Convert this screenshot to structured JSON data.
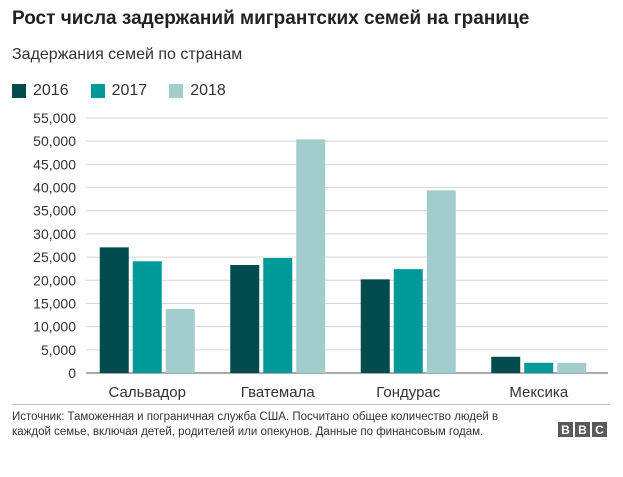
{
  "title": "Рост числа задержаний мигрантских семей на границе",
  "subtitle": "Задержания семей по странам",
  "source": "Источник: Таможенная и пограничная служба США. Посчитано общее количество людей в каждой семье, включая детей, родителей или опекунов. Данные по финансовым годам.",
  "logo": {
    "letters": [
      "B",
      "B",
      "C"
    ]
  },
  "chart_data": {
    "type": "bar",
    "categories": [
      "Сальвадор",
      "Гватемала",
      "Гондурас",
      "Мексика"
    ],
    "series": [
      {
        "name": "2016",
        "color": "#004b4b",
        "values": [
          27100,
          23300,
          20200,
          3500
        ]
      },
      {
        "name": "2017",
        "color": "#00999a",
        "values": [
          24100,
          24800,
          22400,
          2200
        ]
      },
      {
        "name": "2018",
        "color": "#a3cdcd",
        "values": [
          13800,
          50400,
          39400,
          2200
        ]
      }
    ],
    "ylim": [
      0,
      55000
    ],
    "yticks": [
      0,
      5000,
      10000,
      15000,
      20000,
      25000,
      30000,
      35000,
      40000,
      45000,
      50000,
      55000
    ],
    "ytick_labels": [
      "0",
      "5,000",
      "10,000",
      "15,000",
      "20,000",
      "25,000",
      "30,000",
      "35,000",
      "40,000",
      "45,000",
      "50,000",
      "55,000"
    ],
    "grid": true,
    "legend": "top-left"
  }
}
